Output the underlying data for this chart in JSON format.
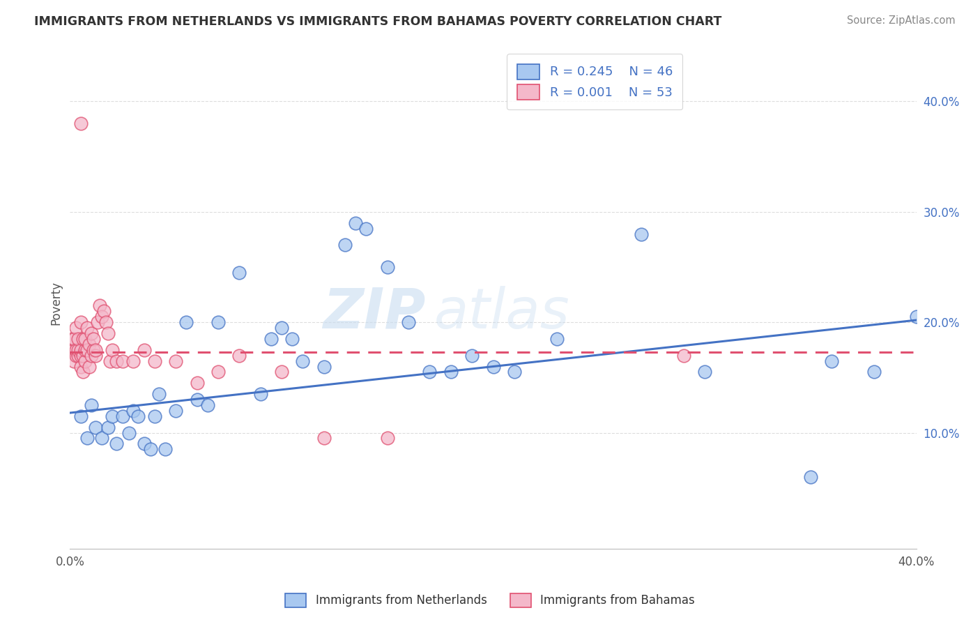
{
  "title": "IMMIGRANTS FROM NETHERLANDS VS IMMIGRANTS FROM BAHAMAS POVERTY CORRELATION CHART",
  "source": "Source: ZipAtlas.com",
  "ylabel": "Poverty",
  "watermark_zip": "ZIP",
  "watermark_atlas": "atlas",
  "xlim": [
    0.0,
    0.4
  ],
  "ylim": [
    -0.005,
    0.44
  ],
  "yticks": [
    0.1,
    0.2,
    0.3,
    0.4
  ],
  "ytick_labels": [
    "10.0%",
    "20.0%",
    "30.0%",
    "40.0%"
  ],
  "legend_r1": "R = 0.245",
  "legend_n1": "N = 46",
  "legend_r2": "R = 0.001",
  "legend_n2": "N = 53",
  "color_netherlands": "#A8C8F0",
  "color_bahamas": "#F4B8CA",
  "regression_color_netherlands": "#4472C4",
  "regression_color_bahamas": "#E05070",
  "grid_color": "#DDDDDD",
  "background_color": "#FFFFFF",
  "nl_regression_x0": 0.0,
  "nl_regression_y0": 0.118,
  "nl_regression_x1": 0.4,
  "nl_regression_y1": 0.202,
  "bh_regression_x0": 0.0,
  "bh_regression_y0": 0.173,
  "bh_regression_x1": 0.4,
  "bh_regression_y1": 0.173,
  "netherlands_x": [
    0.005,
    0.008,
    0.01,
    0.012,
    0.015,
    0.018,
    0.02,
    0.022,
    0.025,
    0.028,
    0.03,
    0.032,
    0.035,
    0.038,
    0.04,
    0.042,
    0.045,
    0.05,
    0.055,
    0.06,
    0.065,
    0.07,
    0.08,
    0.09,
    0.095,
    0.1,
    0.105,
    0.11,
    0.12,
    0.13,
    0.135,
    0.14,
    0.15,
    0.16,
    0.17,
    0.18,
    0.19,
    0.2,
    0.21,
    0.23,
    0.27,
    0.3,
    0.35,
    0.36,
    0.38,
    0.4
  ],
  "netherlands_y": [
    0.115,
    0.095,
    0.125,
    0.105,
    0.095,
    0.105,
    0.115,
    0.09,
    0.115,
    0.1,
    0.12,
    0.115,
    0.09,
    0.085,
    0.115,
    0.135,
    0.085,
    0.12,
    0.2,
    0.13,
    0.125,
    0.2,
    0.245,
    0.135,
    0.185,
    0.195,
    0.185,
    0.165,
    0.16,
    0.27,
    0.29,
    0.285,
    0.25,
    0.2,
    0.155,
    0.155,
    0.17,
    0.16,
    0.155,
    0.185,
    0.28,
    0.155,
    0.06,
    0.165,
    0.155,
    0.205
  ],
  "bahamas_x": [
    0.001,
    0.001,
    0.002,
    0.002,
    0.002,
    0.003,
    0.003,
    0.003,
    0.004,
    0.004,
    0.004,
    0.005,
    0.005,
    0.005,
    0.005,
    0.006,
    0.006,
    0.006,
    0.007,
    0.007,
    0.007,
    0.008,
    0.008,
    0.009,
    0.009,
    0.01,
    0.01,
    0.011,
    0.011,
    0.012,
    0.012,
    0.013,
    0.014,
    0.015,
    0.016,
    0.017,
    0.018,
    0.019,
    0.02,
    0.022,
    0.025,
    0.03,
    0.035,
    0.04,
    0.05,
    0.06,
    0.07,
    0.08,
    0.1,
    0.12,
    0.15,
    0.29,
    0.005
  ],
  "bahamas_y": [
    0.175,
    0.185,
    0.165,
    0.175,
    0.185,
    0.17,
    0.175,
    0.195,
    0.17,
    0.175,
    0.185,
    0.16,
    0.17,
    0.175,
    0.2,
    0.155,
    0.17,
    0.185,
    0.165,
    0.175,
    0.185,
    0.175,
    0.195,
    0.16,
    0.18,
    0.17,
    0.19,
    0.175,
    0.185,
    0.17,
    0.175,
    0.2,
    0.215,
    0.205,
    0.21,
    0.2,
    0.19,
    0.165,
    0.175,
    0.165,
    0.165,
    0.165,
    0.175,
    0.165,
    0.165,
    0.145,
    0.155,
    0.17,
    0.155,
    0.095,
    0.095,
    0.17,
    0.38
  ]
}
